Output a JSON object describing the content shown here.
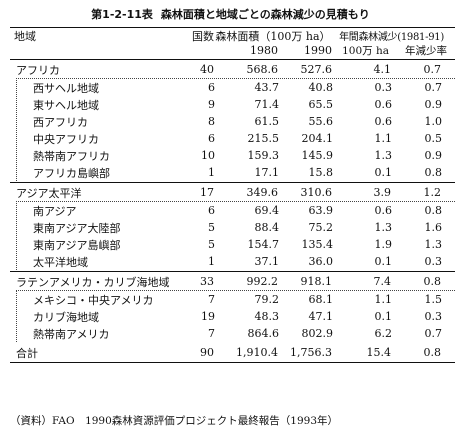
{
  "title": {
    "number": "第1-2-11表",
    "text": "森林面積と地域ごとの森林減少の見積もり"
  },
  "header": {
    "region": "地域",
    "countries": "国数",
    "area": "森林面積（100万 ha）",
    "loss": "年間森林減少(1981-91)",
    "year1980": "1980",
    "year1990": "1990",
    "loss_unit": "100万 ha",
    "rate": "年減少率"
  },
  "groups": [
    {
      "name": "アフリカ",
      "countries": "40",
      "a1980": "568.6",
      "a1990": "527.6",
      "loss": "4.1",
      "rate": "0.7",
      "subs": [
        {
          "name": "西サヘル地域",
          "countries": "6",
          "a1980": "43.7",
          "a1990": "40.8",
          "loss": "0.3",
          "rate": "0.7"
        },
        {
          "name": "東サヘル地域",
          "countries": "9",
          "a1980": "71.4",
          "a1990": "65.5",
          "loss": "0.6",
          "rate": "0.9"
        },
        {
          "name": "西アフリカ",
          "countries": "8",
          "a1980": "61.5",
          "a1990": "55.6",
          "loss": "0.6",
          "rate": "1.0"
        },
        {
          "name": "中央アフリカ",
          "countries": "6",
          "a1980": "215.5",
          "a1990": "204.1",
          "loss": "1.1",
          "rate": "0.5"
        },
        {
          "name": "熱帯南アフリカ",
          "countries": "10",
          "a1980": "159.3",
          "a1990": "145.9",
          "loss": "1.3",
          "rate": "0.9"
        },
        {
          "name": "アフリカ島嶼部",
          "countries": "1",
          "a1980": "17.1",
          "a1990": "15.8",
          "loss": "0.1",
          "rate": "0.8"
        }
      ]
    },
    {
      "name": "アジア太平洋",
      "countries": "17",
      "a1980": "349.6",
      "a1990": "310.6",
      "loss": "3.9",
      "rate": "1.2",
      "subs": [
        {
          "name": "南アジア",
          "countries": "6",
          "a1980": "69.4",
          "a1990": "63.9",
          "loss": "0.6",
          "rate": "0.8"
        },
        {
          "name": "東南アジア大陸部",
          "countries": "5",
          "a1980": "88.4",
          "a1990": "75.2",
          "loss": "1.3",
          "rate": "1.6"
        },
        {
          "name": "東南アジア島嶼部",
          "countries": "5",
          "a1980": "154.7",
          "a1990": "135.4",
          "loss": "1.9",
          "rate": "1.3"
        },
        {
          "name": "太平洋地域",
          "countries": "1",
          "a1980": "37.1",
          "a1990": "36.0",
          "loss": "0.1",
          "rate": "0.3"
        }
      ]
    },
    {
      "name": "ラテンアメリカ・カリブ海地域",
      "countries": "33",
      "a1980": "992.2",
      "a1990": "918.1",
      "loss": "7.4",
      "rate": "0.8",
      "subs": [
        {
          "name": "メキシコ・中央アメリカ",
          "countries": "7",
          "a1980": "79.2",
          "a1990": "68.1",
          "loss": "1.1",
          "rate": "1.5"
        },
        {
          "name": "カリブ海地域",
          "countries": "19",
          "a1980": "48.3",
          "a1990": "47.1",
          "loss": "0.1",
          "rate": "0.3"
        },
        {
          "name": "熱帯南アメリカ",
          "countries": "7",
          "a1980": "864.6",
          "a1990": "802.9",
          "loss": "6.2",
          "rate": "0.7"
        }
      ]
    }
  ],
  "total": {
    "name": "合計",
    "countries": "90",
    "a1980": "1,910.4",
    "a1990": "1,756.3",
    "loss": "15.4",
    "rate": "0.8"
  },
  "footnote": "（資料）FAO　1990森林資源評価プロジェクト最終報告（1993年）"
}
